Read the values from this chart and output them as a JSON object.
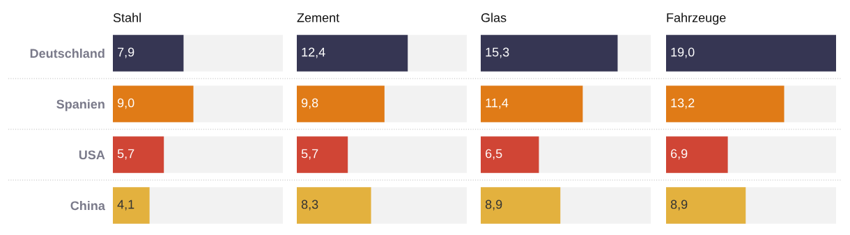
{
  "chart_data": [
    {
      "type": "bar",
      "orientation": "horizontal",
      "title": "Stahl",
      "categories": [
        "Deutschland",
        "Spanien",
        "USA",
        "China"
      ],
      "values": [
        7.9,
        9.0,
        5.7,
        4.1
      ],
      "value_labels": [
        "7,9",
        "9,0",
        "5,7",
        "4,1"
      ],
      "colors": [
        "#363653",
        "#e07b17",
        "#d04535",
        "#e3b13e"
      ],
      "xlim": [
        0,
        19.0
      ],
      "tick_labels": "y"
    },
    {
      "type": "bar",
      "orientation": "horizontal",
      "title": "Zement",
      "categories": [
        null,
        null,
        null,
        null
      ],
      "values": [
        12.4,
        9.8,
        5.7,
        8.3
      ],
      "value_labels": [
        "12,4",
        "9,8",
        "5,7",
        "8,3"
      ],
      "colors": [
        "#363653",
        "#e07b17",
        "#d04535",
        "#e3b13e"
      ],
      "xlim": [
        0,
        19.0
      ]
    },
    {
      "type": "bar",
      "orientation": "horizontal",
      "title": "Glas",
      "categories": [
        null,
        null,
        null,
        null
      ],
      "values": [
        15.3,
        11.4,
        6.5,
        8.9
      ],
      "value_labels": [
        "15,3",
        "11,4",
        "6,5",
        "8,9"
      ],
      "colors": [
        "#363653",
        "#e07b17",
        "#d04535",
        "#e3b13e"
      ],
      "xlim": [
        0,
        19.0
      ]
    },
    {
      "type": "bar",
      "orientation": "horizontal",
      "title": "Fahrzeuge",
      "categories": [
        null,
        null,
        null,
        null
      ],
      "values": [
        19.0,
        13.2,
        6.9,
        8.9
      ],
      "value_labels": [
        "19,0",
        "13,2",
        "6,9",
        "8,9"
      ],
      "colors": [
        "#363653",
        "#e07b17",
        "#d04535",
        "#e3b13e"
      ],
      "xlim": [
        0,
        19.0
      ]
    }
  ]
}
